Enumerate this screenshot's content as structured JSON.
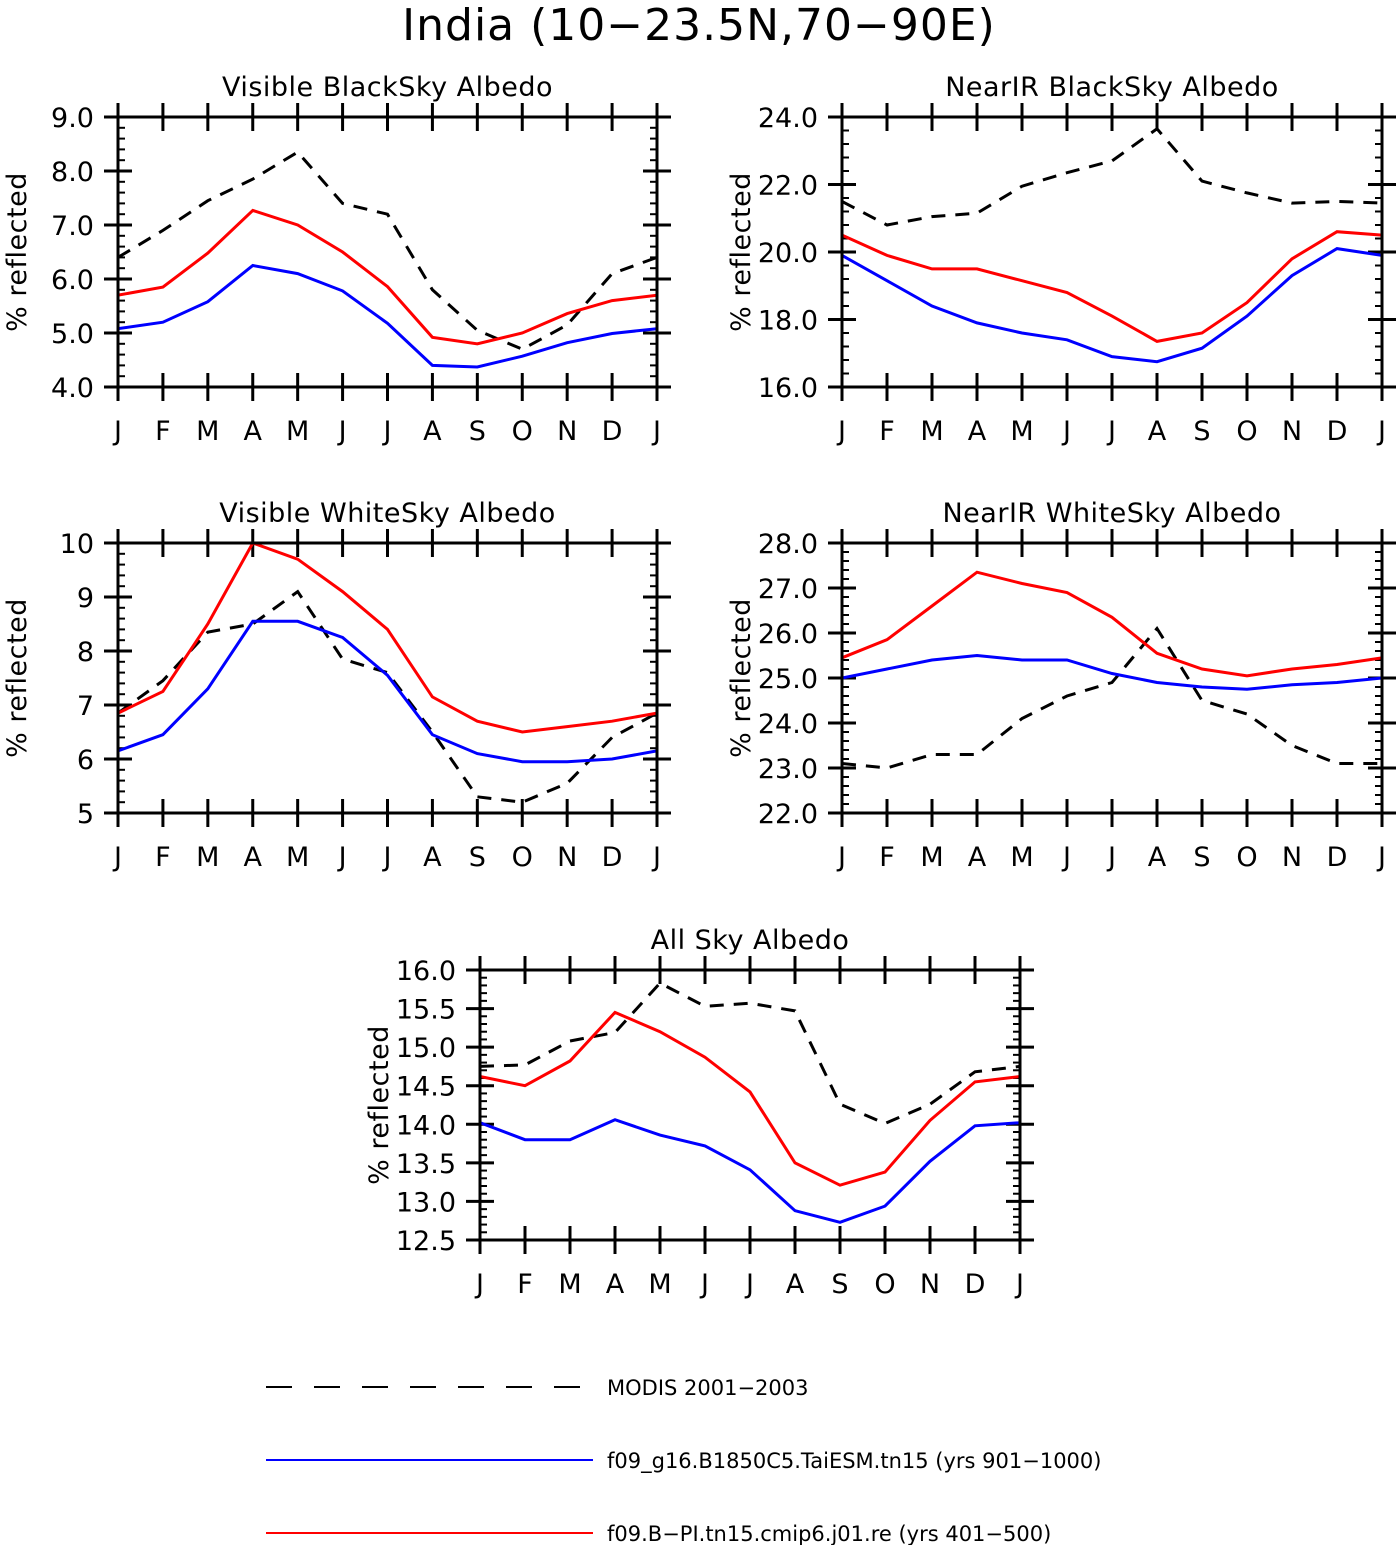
{
  "title": "India (10-23.5N,70-90E)",
  "legend": [
    {
      "label": "MODIS 2001-2003",
      "color": "#000000",
      "dash": true
    },
    {
      "label": "f09_g16.B1850C5.TaiESM.tn15 (yrs 901-1000)",
      "color": "#0000ff",
      "dash": false
    },
    {
      "label": "f09.B-PI.tn15.cmip6.j01.re (yrs 401-500)",
      "color": "#ff0000",
      "dash": false
    }
  ],
  "chart_data": [
    {
      "type": "line",
      "title": "Visible BlackSky Albedo",
      "ylabel": "% reflected",
      "categories": [
        "J",
        "F",
        "M",
        "A",
        "M",
        "J",
        "J",
        "A",
        "S",
        "O",
        "N",
        "D",
        "J"
      ],
      "ylim": [
        4.0,
        9.0
      ],
      "yticks": [
        4.0,
        5.0,
        6.0,
        7.0,
        8.0,
        9.0
      ],
      "yticklabels": [
        "4.0",
        "5.0",
        "6.0",
        "7.0",
        "8.0",
        "9.0"
      ],
      "yminor": 0.2,
      "series": [
        {
          "color": "#000000",
          "dash": true,
          "values": [
            6.4,
            6.9,
            7.45,
            7.85,
            8.35,
            7.4,
            7.2,
            5.8,
            5.05,
            4.7,
            5.15,
            6.1,
            6.4
          ]
        },
        {
          "color": "#0000ff",
          "dash": false,
          "values": [
            5.08,
            5.2,
            5.58,
            6.25,
            6.1,
            5.78,
            5.18,
            4.4,
            4.37,
            4.57,
            4.82,
            4.99,
            5.08
          ]
        },
        {
          "color": "#ff0000",
          "dash": false,
          "values": [
            5.7,
            5.85,
            6.48,
            7.27,
            7.0,
            6.5,
            5.86,
            4.92,
            4.8,
            5.0,
            5.36,
            5.6,
            5.7
          ]
        }
      ]
    },
    {
      "type": "line",
      "title": "NearIR BlackSky Albedo",
      "ylabel": "% reflected",
      "categories": [
        "J",
        "F",
        "M",
        "A",
        "M",
        "J",
        "J",
        "A",
        "S",
        "O",
        "N",
        "D",
        "J"
      ],
      "ylim": [
        16.0,
        24.0
      ],
      "yticks": [
        16.0,
        18.0,
        20.0,
        22.0,
        24.0
      ],
      "yticklabels": [
        "16.0",
        "18.0",
        "20.0",
        "22.0",
        "24.0"
      ],
      "yminor": 0.4,
      "series": [
        {
          "color": "#000000",
          "dash": true,
          "values": [
            21.5,
            20.8,
            21.05,
            21.15,
            21.95,
            22.35,
            22.7,
            23.65,
            22.1,
            21.75,
            21.45,
            21.5,
            21.45
          ]
        },
        {
          "color": "#0000ff",
          "dash": false,
          "values": [
            19.9,
            19.15,
            18.4,
            17.9,
            17.6,
            17.4,
            16.9,
            16.75,
            17.15,
            18.1,
            19.3,
            20.1,
            19.9
          ]
        },
        {
          "color": "#ff0000",
          "dash": false,
          "values": [
            20.5,
            19.9,
            19.5,
            19.5,
            19.15,
            18.8,
            18.1,
            17.35,
            17.6,
            18.5,
            19.8,
            20.6,
            20.5
          ]
        }
      ]
    },
    {
      "type": "line",
      "title": "Visible WhiteSky Albedo",
      "ylabel": "% reflected",
      "categories": [
        "J",
        "F",
        "M",
        "A",
        "M",
        "J",
        "J",
        "A",
        "S",
        "O",
        "N",
        "D",
        "J"
      ],
      "ylim": [
        5,
        10
      ],
      "yticks": [
        5,
        6,
        7,
        8,
        9,
        10
      ],
      "yticklabels": [
        "5",
        "6",
        "7",
        "8",
        "9",
        "10"
      ],
      "yminor": 0.2,
      "series": [
        {
          "color": "#000000",
          "dash": true,
          "values": [
            6.85,
            7.45,
            8.35,
            8.5,
            9.1,
            7.85,
            7.6,
            6.5,
            5.3,
            5.2,
            5.55,
            6.4,
            6.85
          ]
        },
        {
          "color": "#0000ff",
          "dash": false,
          "values": [
            6.15,
            6.45,
            7.3,
            8.55,
            8.55,
            8.25,
            7.55,
            6.45,
            6.1,
            5.95,
            5.95,
            6.0,
            6.15
          ]
        },
        {
          "color": "#ff0000",
          "dash": false,
          "values": [
            6.85,
            7.25,
            8.5,
            10.0,
            9.7,
            9.1,
            8.4,
            7.15,
            6.7,
            6.5,
            6.6,
            6.7,
            6.85
          ]
        }
      ]
    },
    {
      "type": "line",
      "title": "NearIR WhiteSky Albedo",
      "ylabel": "% reflected",
      "categories": [
        "J",
        "F",
        "M",
        "A",
        "M",
        "J",
        "J",
        "A",
        "S",
        "O",
        "N",
        "D",
        "J"
      ],
      "ylim": [
        22.0,
        28.0
      ],
      "yticks": [
        22.0,
        23.0,
        24.0,
        25.0,
        26.0,
        27.0,
        28.0
      ],
      "yticklabels": [
        "22.0",
        "23.0",
        "24.0",
        "25.0",
        "26.0",
        "27.0",
        "28.0"
      ],
      "yminor": 0.2,
      "series": [
        {
          "color": "#000000",
          "dash": true,
          "values": [
            23.1,
            23.0,
            23.3,
            23.3,
            24.1,
            24.6,
            24.9,
            26.1,
            24.5,
            24.2,
            23.5,
            23.1,
            23.1
          ]
        },
        {
          "color": "#0000ff",
          "dash": false,
          "values": [
            25.0,
            25.2,
            25.4,
            25.5,
            25.4,
            25.4,
            25.1,
            24.9,
            24.8,
            24.75,
            24.85,
            24.9,
            25.0
          ]
        },
        {
          "color": "#ff0000",
          "dash": false,
          "values": [
            25.45,
            25.85,
            26.6,
            27.35,
            27.1,
            26.9,
            26.35,
            25.55,
            25.2,
            25.05,
            25.2,
            25.3,
            25.45
          ]
        }
      ]
    },
    {
      "type": "line",
      "title": "All Sky Albedo",
      "ylabel": "% reflected",
      "categories": [
        "J",
        "F",
        "M",
        "A",
        "M",
        "J",
        "J",
        "A",
        "S",
        "O",
        "N",
        "D",
        "J"
      ],
      "ylim": [
        12.5,
        16.0
      ],
      "yticks": [
        12.5,
        13.0,
        13.5,
        14.0,
        14.5,
        15.0,
        15.5,
        16.0
      ],
      "yticklabels": [
        "12.5",
        "13.0",
        "13.5",
        "14.0",
        "14.5",
        "15.0",
        "15.5",
        "16.0"
      ],
      "yminor": 0.1,
      "series": [
        {
          "color": "#000000",
          "dash": true,
          "values": [
            14.75,
            14.77,
            15.08,
            15.19,
            15.83,
            15.53,
            15.57,
            15.47,
            14.26,
            14.01,
            14.26,
            14.68,
            14.75
          ]
        },
        {
          "color": "#0000ff",
          "dash": false,
          "values": [
            14.02,
            13.8,
            13.8,
            14.06,
            13.86,
            13.72,
            13.41,
            12.88,
            12.73,
            12.94,
            13.52,
            13.98,
            14.02
          ]
        },
        {
          "color": "#ff0000",
          "dash": false,
          "values": [
            14.62,
            14.5,
            14.82,
            15.45,
            15.2,
            14.87,
            14.42,
            13.5,
            13.21,
            13.38,
            14.05,
            14.55,
            14.62
          ]
        }
      ]
    }
  ]
}
